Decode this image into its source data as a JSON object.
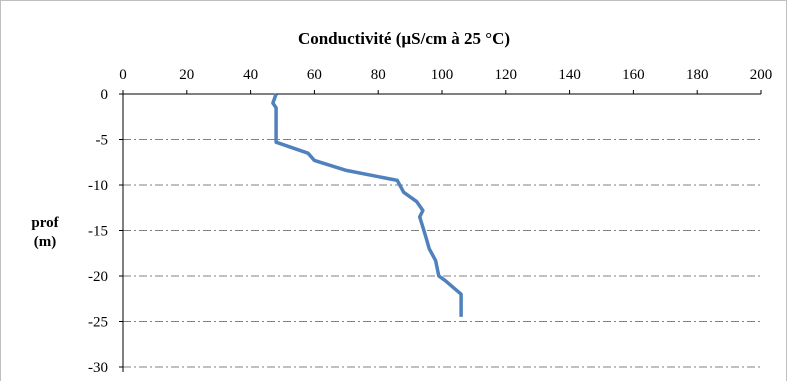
{
  "chart_data": {
    "type": "line",
    "title": "Conductivité (µS/cm à 25 °C)",
    "ylabel_line1": "prof",
    "ylabel_line2": "(m)",
    "xlim": [
      0,
      200
    ],
    "ylim": [
      -30,
      0
    ],
    "x_ticks": [
      "0",
      "20",
      "40",
      "60",
      "80",
      "100",
      "120",
      "140",
      "160",
      "180",
      "200"
    ],
    "y_ticks": [
      "0",
      "-5",
      "-10",
      "-15",
      "-20",
      "-25",
      "-30"
    ],
    "x_axis_position": "top",
    "grid": "horizontal dash-dot",
    "line_color": "#4f81bd",
    "series": [
      {
        "x": [
          48,
          47,
          48,
          48,
          48,
          58,
          60,
          70,
          86,
          88,
          92,
          94,
          93,
          95,
          96,
          98,
          99,
          101,
          106,
          106
        ],
        "y": [
          0,
          -1,
          -1.5,
          -3,
          -5.3,
          -6.5,
          -7.3,
          -8.4,
          -9.5,
          -10.8,
          -11.8,
          -12.8,
          -13.5,
          -15.8,
          -17,
          -18.3,
          -20,
          -20.5,
          -22,
          -24.5
        ]
      }
    ]
  }
}
